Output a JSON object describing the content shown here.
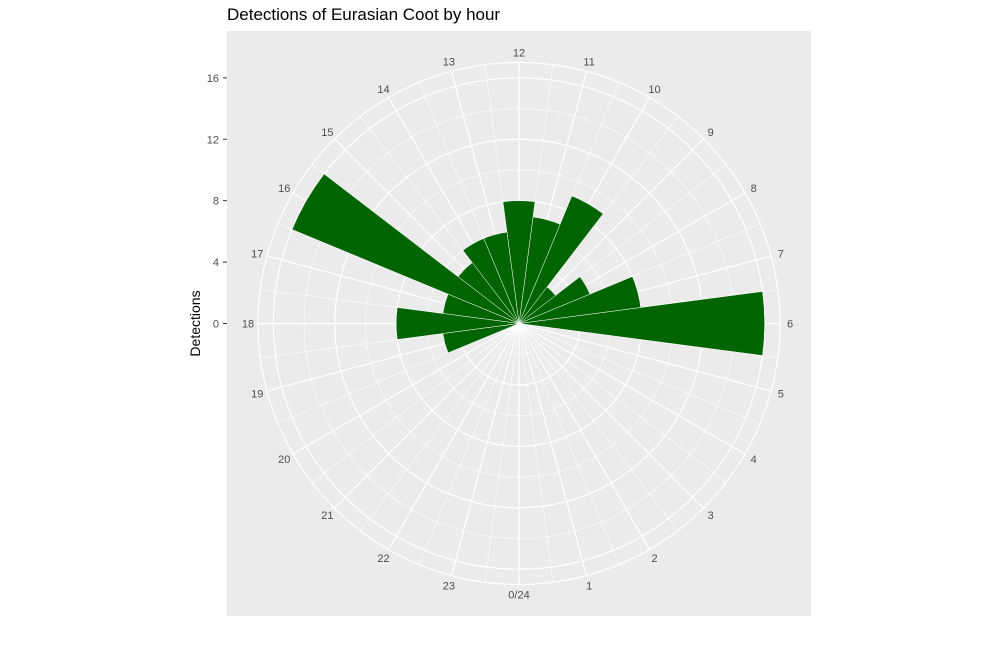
{
  "chart_data": {
    "type": "bar",
    "coord": "polar",
    "title": "Detections of Eurasian Coot by hour",
    "xlabel": "",
    "ylabel": "Detections",
    "hour_labels": [
      "0/24",
      "1",
      "2",
      "3",
      "4",
      "5",
      "6",
      "7",
      "8",
      "9",
      "10",
      "11",
      "12",
      "13",
      "14",
      "15",
      "16",
      "17",
      "18",
      "19",
      "20",
      "21",
      "22",
      "23"
    ],
    "y_ticks": [
      0,
      4,
      8,
      12,
      16
    ],
    "ylim": [
      0,
      17
    ],
    "bin_width_hours": 1,
    "series": [
      {
        "color": "#006400",
        "hours": [
          0,
          1,
          2,
          3,
          4,
          5,
          6,
          6.5,
          7,
          7.5,
          8,
          8.5,
          9,
          9.5,
          10,
          10.5,
          11,
          11.5,
          12,
          12.5,
          13,
          13.5,
          14,
          14.5,
          15,
          15.5,
          16,
          16.5,
          17,
          17.5,
          18,
          18.5,
          19,
          19.5,
          20,
          20.5,
          21,
          21.5,
          22,
          22.5,
          23,
          23.5
        ],
        "values": [
          0,
          0,
          0,
          0,
          0,
          0,
          16,
          0,
          8,
          0,
          5,
          0,
          3,
          0,
          9,
          0,
          7,
          0,
          8,
          0,
          6,
          0,
          6,
          0,
          5,
          0,
          16,
          0,
          5,
          0,
          8,
          0,
          5,
          0,
          0,
          0,
          0,
          0,
          0,
          0,
          0,
          0
        ]
      }
    ],
    "grid": true,
    "panel_background": "#ebebeb",
    "grid_color": "#ffffff"
  }
}
